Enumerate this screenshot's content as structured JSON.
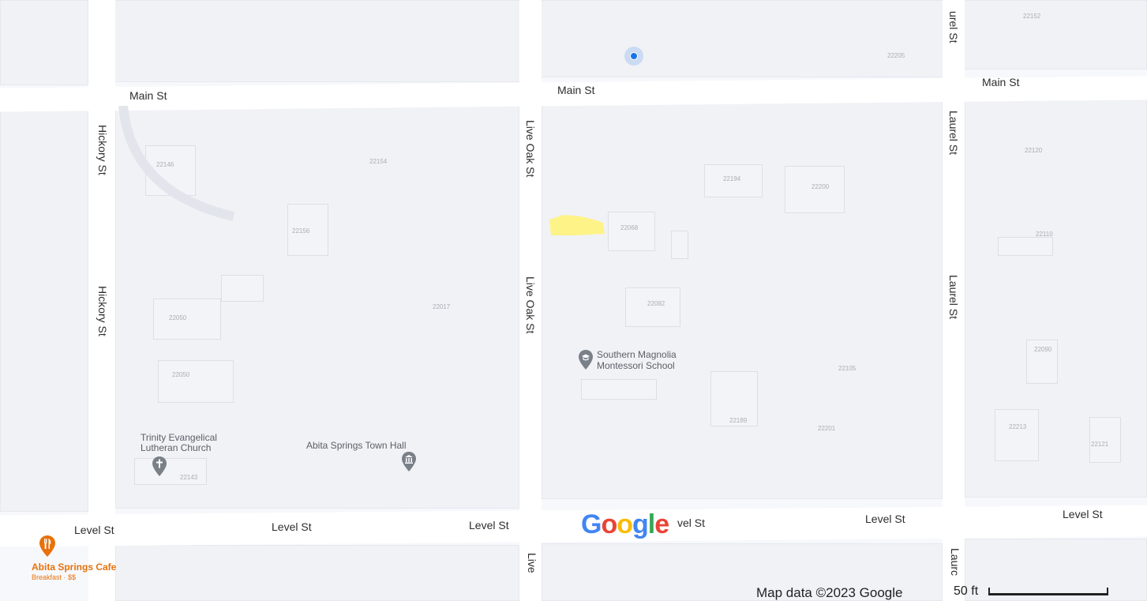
{
  "streets": {
    "main_st": "Main St",
    "hickory_st": "Hickory St",
    "live_oak_st": "Live Oak St",
    "live_oak_short": "Live",
    "laurel_st": "Laurel St",
    "laurel_top": "urel St",
    "laurel_short": "Laurc",
    "level_st": "Level St",
    "level_st_cut": "vel St"
  },
  "addresses": [
    "22152",
    "22205",
    "22146",
    "22154",
    "22194",
    "22200",
    "22120",
    "22156",
    "22068",
    "22110",
    "22050",
    "22017",
    "22082",
    "22090",
    "22050",
    "22105",
    "22189",
    "22201",
    "22213",
    "22121",
    "22143"
  ],
  "pois": {
    "church": {
      "line1": "Trinity Evangelical",
      "line2": "Lutheran Church"
    },
    "town_hall": "Abita Springs Town Hall",
    "school": {
      "line1": "Southern Magnolia",
      "line2": "Montessori School"
    },
    "cafe": {
      "name": "Abita Springs Cafe",
      "detail": "Breakfast · $$"
    }
  },
  "branding": {
    "logo": "Google"
  },
  "footer": {
    "attribution": "Map data ©2023 Google",
    "scale_label": "50 ft"
  },
  "colors": {
    "poi_gray": "#7a8088",
    "cafe_orange": "#e8710a",
    "location_blue": "#1a73e8",
    "highlight_yellow": "#fff37a"
  }
}
